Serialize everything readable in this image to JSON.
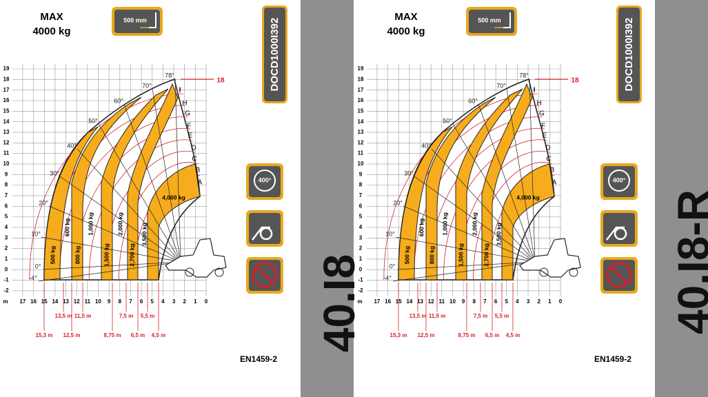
{
  "panels": [
    {
      "max_label": "MAX",
      "max_value": "4000 kg",
      "attachment": "500 mm",
      "doc_code": "DOCD1000I392",
      "model": "40.I8",
      "standard": "EN1459-2",
      "reach_line": "18",
      "rotation": "400°",
      "angles": [
        "78°",
        "70°",
        "60°",
        "50°",
        "40°",
        "30°",
        "20°",
        "10°",
        "0°",
        "-4°"
      ],
      "zones": [
        "A",
        "B",
        "C",
        "D",
        "E",
        "F",
        "G",
        "H",
        "I"
      ],
      "loads": [
        "500 kg",
        "600 kg",
        "800 kg",
        "1,000 kg",
        "1,500 kg",
        "2,000 kg",
        "2,700 kg",
        "3,500 kg",
        "4,000 kg"
      ],
      "y_axis": [
        "19",
        "18",
        "17",
        "16",
        "15",
        "14",
        "13",
        "12",
        "11",
        "10",
        "9",
        "8",
        "7",
        "6",
        "5",
        "4",
        "3",
        "2",
        "1",
        "0",
        "-1",
        "-2"
      ],
      "x_axis": [
        "m",
        "17",
        "16",
        "15",
        "14",
        "13",
        "12",
        "11",
        "10",
        "9",
        "8",
        "7",
        "6",
        "5",
        "4",
        "3",
        "2",
        "1",
        "0"
      ],
      "distances": [
        "15,3 m",
        "13,5 m",
        "12,5 m",
        "11,5 m",
        "8,75 m",
        "7,5 m",
        "6,5 m",
        "5,5 m",
        "4,5 m"
      ]
    },
    {
      "max_label": "MAX",
      "max_value": "4000 kg",
      "attachment": "500 mm",
      "doc_code": "DOCD1000I392",
      "model": "40.I8-R",
      "standard": "EN1459-2",
      "reach_line": "18",
      "rotation": "400°",
      "angles": [
        "78°",
        "70°",
        "60°",
        "50°",
        "40°",
        "30°",
        "20°",
        "10°",
        "0°",
        "-4°"
      ],
      "zones": [
        "A",
        "B",
        "C",
        "D",
        "E",
        "F",
        "G",
        "H",
        "I"
      ],
      "loads": [
        "500 kg",
        "600 kg",
        "800 kg",
        "1,000 kg",
        "1,500 kg",
        "2,000 kg",
        "2,700 kg",
        "3,500 kg",
        "4,000 kg"
      ],
      "y_axis": [
        "19",
        "18",
        "17",
        "16",
        "15",
        "14",
        "13",
        "12",
        "11",
        "10",
        "9",
        "8",
        "7",
        "6",
        "5",
        "4",
        "3",
        "2",
        "1",
        "0",
        "-1",
        "-2"
      ],
      "x_axis": [
        "m",
        "17",
        "16",
        "15",
        "14",
        "13",
        "12",
        "11",
        "10",
        "9",
        "8",
        "7",
        "6",
        "5",
        "4",
        "3",
        "2",
        "1",
        "0"
      ],
      "distances": [
        "15,3 m",
        "13,5 m",
        "12,5 m",
        "11,5 m",
        "8,75 m",
        "7,5 m",
        "6,5 m",
        "5,5 m",
        "4,5 m"
      ]
    }
  ]
}
